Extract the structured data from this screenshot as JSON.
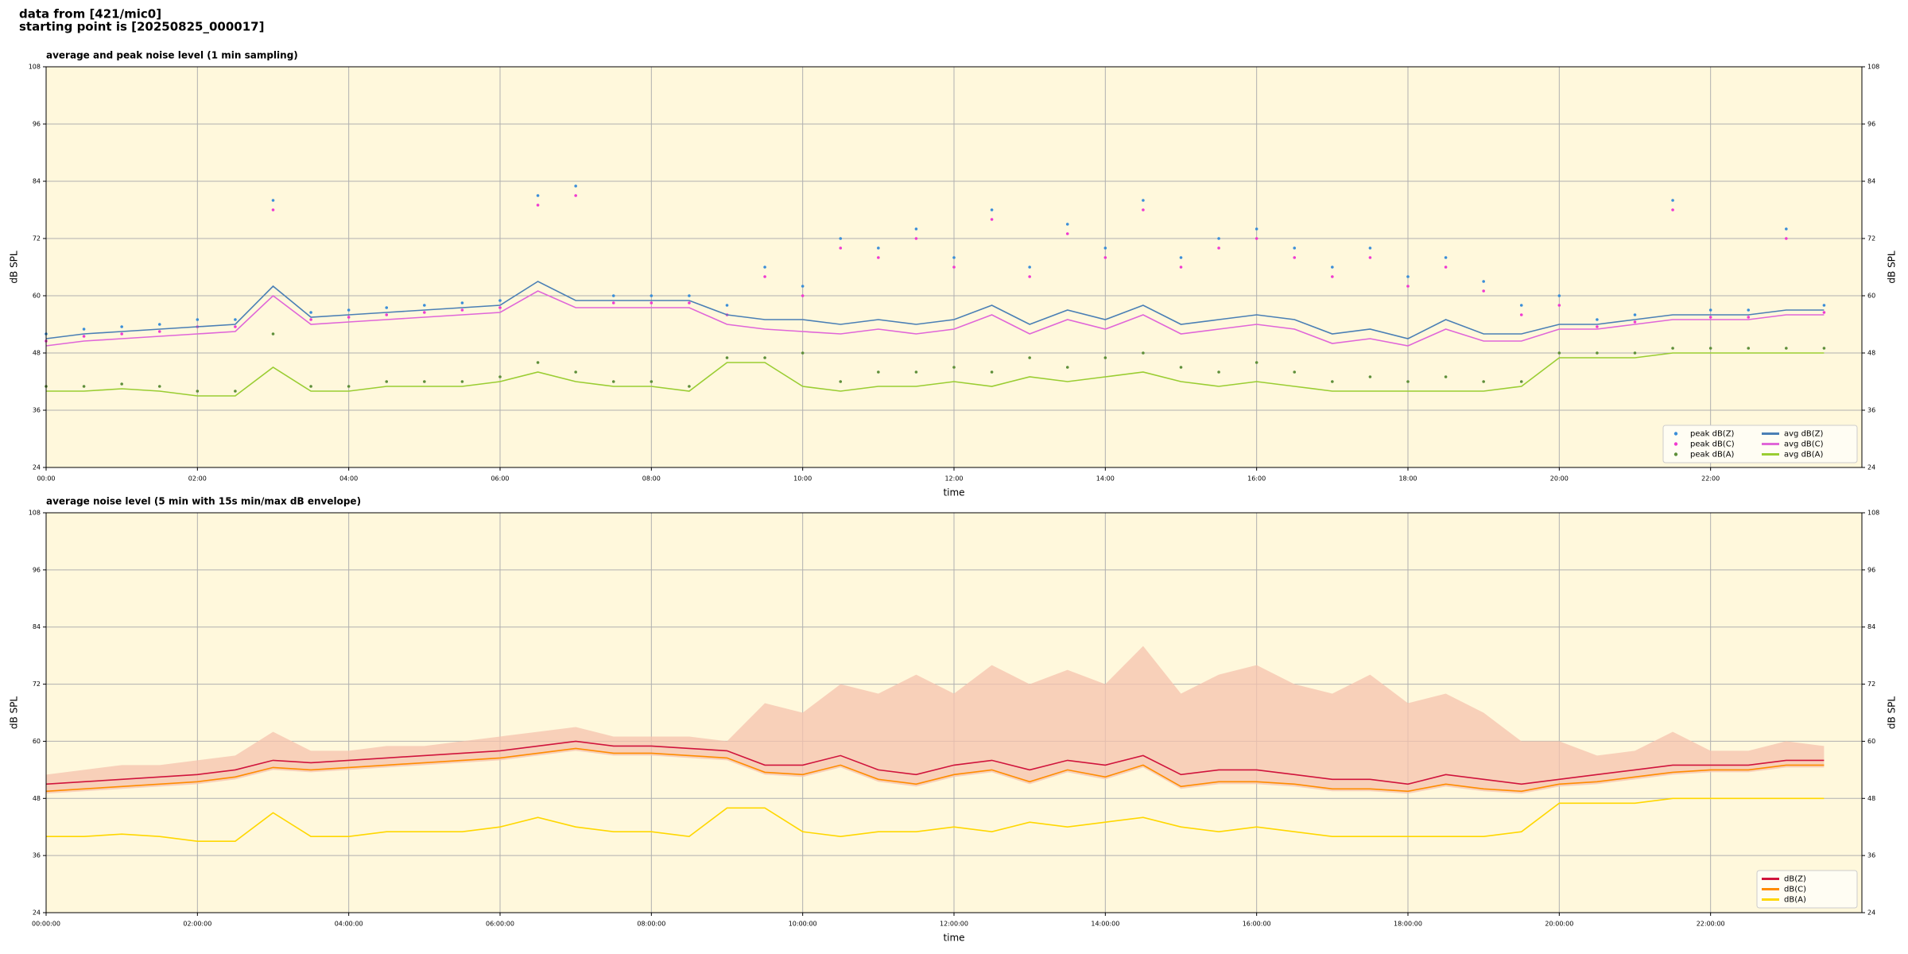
{
  "figure": {
    "title_lines": [
      "data from [421/mic0]",
      "starting point is [20250825_000017]"
    ]
  },
  "chart_data": [
    {
      "type": "line",
      "title": "average and peak noise level (1 min sampling)",
      "xlabel": "time",
      "ylabel": "dB SPL",
      "x": [
        0,
        0.5,
        1,
        1.5,
        2,
        2.5,
        3,
        3.5,
        4,
        4.5,
        5,
        5.5,
        6,
        6.5,
        7,
        7.5,
        8,
        8.5,
        9,
        9.5,
        10,
        10.5,
        11,
        11.5,
        12,
        12.5,
        13,
        13.5,
        14,
        14.5,
        15,
        15.5,
        16,
        16.5,
        17,
        17.5,
        18,
        18.5,
        19,
        19.5,
        20,
        20.5,
        21,
        21.5,
        22,
        22.5,
        23,
        23.5
      ],
      "xlim": [
        0,
        24
      ],
      "xticks": [
        {
          "value": 0,
          "label": "00:00"
        },
        {
          "value": 2,
          "label": "02:00"
        },
        {
          "value": 4,
          "label": "04:00"
        },
        {
          "value": 6,
          "label": "06:00"
        },
        {
          "value": 8,
          "label": "08:00"
        },
        {
          "value": 10,
          "label": "10:00"
        },
        {
          "value": 12,
          "label": "12:00"
        },
        {
          "value": 14,
          "label": "14:00"
        },
        {
          "value": 16,
          "label": "16:00"
        },
        {
          "value": 18,
          "label": "18:00"
        },
        {
          "value": 20,
          "label": "20:00"
        },
        {
          "value": 22,
          "label": "22:00"
        }
      ],
      "ylim": [
        24,
        108
      ],
      "yticks": [
        24,
        36,
        48,
        60,
        72,
        84,
        96,
        108
      ],
      "grid": true,
      "legend": "lower right",
      "legend_columns": 2,
      "series": [
        {
          "name": "peak dB(Z)",
          "mode": "markers",
          "color": "#3b8ed8",
          "values": [
            52,
            53,
            53.5,
            54,
            55,
            55,
            80,
            56.5,
            57,
            57.5,
            58,
            58.5,
            59,
            81,
            83,
            60,
            60,
            60,
            58,
            66,
            62,
            72,
            70,
            74,
            68,
            78,
            66,
            75,
            70,
            80,
            68,
            72,
            74,
            70,
            66,
            70,
            64,
            68,
            63,
            58,
            60,
            55,
            56,
            80,
            57,
            57,
            74,
            58
          ]
        },
        {
          "name": "peak dB(C)",
          "mode": "markers",
          "color": "#f03ad0",
          "values": [
            50.5,
            51.5,
            52,
            52.5,
            53.5,
            53.5,
            78,
            55,
            55.5,
            56,
            56.5,
            57,
            57.5,
            79,
            81,
            58.5,
            58.5,
            58.5,
            56,
            64,
            60,
            70,
            68,
            72,
            66,
            76,
            64,
            73,
            68,
            78,
            66,
            70,
            72,
            68,
            64,
            68,
            62,
            66,
            61,
            56,
            58,
            53.5,
            54.5,
            78,
            55.5,
            55.5,
            72,
            56.5
          ]
        },
        {
          "name": "peak dB(A)",
          "mode": "markers",
          "color": "#5e8f3a",
          "values": [
            41,
            41,
            41.5,
            41,
            40,
            40,
            52,
            41,
            41,
            42,
            42,
            42,
            43,
            46,
            44,
            42,
            42,
            41,
            47,
            47,
            48,
            42,
            44,
            44,
            45,
            44,
            47,
            45,
            47,
            48,
            45,
            44,
            46,
            44,
            42,
            43,
            42,
            43,
            42,
            42,
            48,
            48,
            48,
            49,
            49,
            49,
            49,
            49
          ]
        },
        {
          "name": "avg dB(Z)",
          "mode": "lines",
          "color": "#4a7fb5",
          "values": [
            51,
            52,
            52.5,
            53,
            53.5,
            54,
            62,
            55.5,
            56,
            56.5,
            57,
            57.5,
            58,
            63,
            59,
            59,
            59,
            59,
            56,
            55,
            55,
            54,
            55,
            54,
            55,
            58,
            54,
            57,
            55,
            58,
            54,
            55,
            56,
            55,
            52,
            53,
            51,
            55,
            52,
            52,
            54,
            54,
            55,
            56,
            56,
            56,
            57,
            57
          ]
        },
        {
          "name": "avg dB(C)",
          "mode": "lines",
          "color": "#e066d8",
          "values": [
            49.5,
            50.5,
            51,
            51.5,
            52,
            52.5,
            60,
            54,
            54.5,
            55,
            55.5,
            56,
            56.5,
            61,
            57.5,
            57.5,
            57.5,
            57.5,
            54,
            53,
            52.5,
            52,
            53,
            52,
            53,
            56,
            52,
            55,
            53,
            56,
            52,
            53,
            54,
            53,
            50,
            51,
            49.5,
            53,
            50.5,
            50.5,
            53,
            53,
            54,
            55,
            55,
            55,
            56,
            56
          ]
        },
        {
          "name": "avg dB(A)",
          "mode": "lines",
          "color": "#9acd32",
          "values": [
            40,
            40,
            40.5,
            40,
            39,
            39,
            45,
            40,
            40,
            41,
            41,
            41,
            42,
            44,
            42,
            41,
            41,
            40,
            46,
            46,
            41,
            40,
            41,
            41,
            42,
            41,
            43,
            42,
            43,
            44,
            42,
            41,
            42,
            41,
            40,
            40,
            40,
            40,
            40,
            41,
            47,
            47,
            47,
            48,
            48,
            48,
            48,
            48
          ]
        }
      ]
    },
    {
      "type": "line",
      "title": "average noise level (5 min with 15s min/max dB envelope)",
      "xlabel": "time",
      "ylabel": "dB SPL",
      "x": [
        0,
        0.5,
        1,
        1.5,
        2,
        2.5,
        3,
        3.5,
        4,
        4.5,
        5,
        5.5,
        6,
        6.5,
        7,
        7.5,
        8,
        8.5,
        9,
        9.5,
        10,
        10.5,
        11,
        11.5,
        12,
        12.5,
        13,
        13.5,
        14,
        14.5,
        15,
        15.5,
        16,
        16.5,
        17,
        17.5,
        18,
        18.5,
        19,
        19.5,
        20,
        20.5,
        21,
        21.5,
        22,
        22.5,
        23,
        23.5
      ],
      "xlim": [
        0,
        24
      ],
      "xticks": [
        {
          "value": 0,
          "label": "00:00:00"
        },
        {
          "value": 2,
          "label": "02:00:00"
        },
        {
          "value": 4,
          "label": "04:00:00"
        },
        {
          "value": 6,
          "label": "06:00:00"
        },
        {
          "value": 8,
          "label": "08:00:00"
        },
        {
          "value": 10,
          "label": "10:00:00"
        },
        {
          "value": 12,
          "label": "12:00:00"
        },
        {
          "value": 14,
          "label": "14:00:00"
        },
        {
          "value": 16,
          "label": "16:00:00"
        },
        {
          "value": 18,
          "label": "18:00:00"
        },
        {
          "value": 20,
          "label": "20:00:00"
        },
        {
          "value": 22,
          "label": "22:00:00"
        }
      ],
      "ylim": [
        24,
        108
      ],
      "yticks": [
        24,
        36,
        48,
        60,
        72,
        84,
        96,
        108
      ],
      "grid": true,
      "legend": "lower right",
      "legend_columns": 1,
      "envelope": {
        "color": "#f5c3ae",
        "max": [
          53,
          54,
          55,
          55,
          56,
          57,
          62,
          58,
          58,
          59,
          59,
          60,
          61,
          62,
          63,
          61,
          61,
          61,
          60,
          68,
          66,
          72,
          70,
          74,
          70,
          76,
          72,
          75,
          72,
          80,
          70,
          74,
          76,
          72,
          70,
          74,
          68,
          70,
          66,
          60,
          60,
          57,
          58,
          62,
          58,
          58,
          60,
          59
        ],
        "min": [
          49,
          49.5,
          50,
          50.5,
          51,
          52,
          54,
          53.5,
          54,
          54.5,
          55,
          55.5,
          56,
          57,
          58,
          57,
          57,
          56.5,
          56,
          53,
          52.5,
          54.5,
          51.5,
          50.5,
          52.5,
          53.5,
          51,
          53.5,
          52,
          54.5,
          50,
          51,
          51,
          50.5,
          49.5,
          49.5,
          49,
          50.5,
          49.5,
          49,
          50.5,
          51,
          52,
          53,
          53.5,
          53.5,
          54.5,
          54.5
        ]
      },
      "series": [
        {
          "name": "dB(Z)",
          "mode": "lines",
          "color": "#d0143c",
          "values": [
            51,
            51.5,
            52,
            52.5,
            53,
            54,
            56,
            55.5,
            56,
            56.5,
            57,
            57.5,
            58,
            59,
            60,
            59,
            59,
            58.5,
            58,
            55,
            55,
            57,
            54,
            53,
            55,
            56,
            54,
            56,
            55,
            57,
            53,
            54,
            54,
            53,
            52,
            52,
            51,
            53,
            52,
            51,
            52,
            53,
            54,
            55,
            55,
            55,
            56,
            56
          ]
        },
        {
          "name": "dB(C)",
          "mode": "lines",
          "color": "#ff8c00",
          "values": [
            49.5,
            50,
            50.5,
            51,
            51.5,
            52.5,
            54.5,
            54,
            54.5,
            55,
            55.5,
            56,
            56.5,
            57.5,
            58.5,
            57.5,
            57.5,
            57,
            56.5,
            53.5,
            53,
            55,
            52,
            51,
            53,
            54,
            51.5,
            54,
            52.5,
            55,
            50.5,
            51.5,
            51.5,
            51,
            50,
            50,
            49.5,
            51,
            50,
            49.5,
            51,
            51.5,
            52.5,
            53.5,
            54,
            54,
            55,
            55
          ]
        },
        {
          "name": "dB(A)",
          "mode": "lines",
          "color": "#ffd700",
          "values": [
            40,
            40,
            40.5,
            40,
            39,
            39,
            45,
            40,
            40,
            41,
            41,
            41,
            42,
            44,
            42,
            41,
            41,
            40,
            46,
            46,
            41,
            40,
            41,
            41,
            42,
            41,
            43,
            42,
            43,
            44,
            42,
            41,
            42,
            41,
            40,
            40,
            40,
            40,
            40,
            41,
            47,
            47,
            47,
            48,
            48,
            48,
            48,
            48
          ]
        }
      ]
    }
  ]
}
